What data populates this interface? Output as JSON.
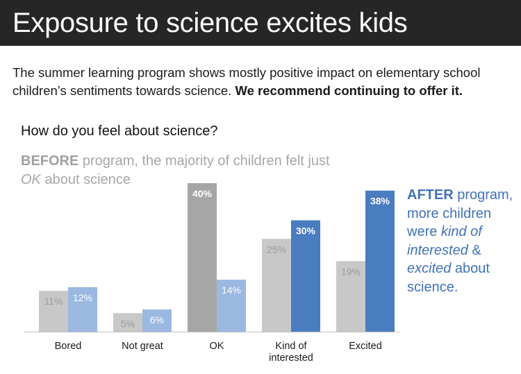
{
  "header": {
    "title": "Exposure to science excites kids"
  },
  "subtitle": {
    "text": "The summer learning program shows mostly positive impact on elementary school children’s sentiments towards science. ",
    "emphasis": "We recommend continuing to offer it."
  },
  "annotations": {
    "before_strong": "BEFORE",
    "before_text": " program, the majority of children felt just ",
    "before_em": "OK",
    "before_end": " about science",
    "after_strong": "AFTER",
    "after_text1": " program, more children were ",
    "after_em1": "kind of interested",
    "after_text2": " & ",
    "after_em2": "excited",
    "after_text3": " about science."
  },
  "chart_data": {
    "type": "bar",
    "title": "How do you feel about science?",
    "categories": [
      "Bored",
      "Not great",
      "OK",
      "Kind of interested",
      "Excited"
    ],
    "series": [
      {
        "name": "BEFORE",
        "values": [
          11,
          5,
          40,
          25,
          19
        ]
      },
      {
        "name": "AFTER",
        "values": [
          12,
          6,
          14,
          30,
          38
        ]
      }
    ],
    "value_labels": {
      "before": [
        "11%",
        "5%",
        "40%",
        "25%",
        "19%"
      ],
      "after": [
        "12%",
        "6%",
        "14%",
        "30%",
        "38%"
      ]
    },
    "ylim": [
      0,
      40
    ],
    "grid": false,
    "colors": {
      "before": "#c8c8c8",
      "before_highlight": "#a6a6a6",
      "after": "#9bb8e0",
      "after_highlight": "#4a7cc0",
      "axis": "#bfbfbf"
    },
    "highlight_before": [
      2
    ],
    "highlight_after": [
      3,
      4
    ]
  }
}
